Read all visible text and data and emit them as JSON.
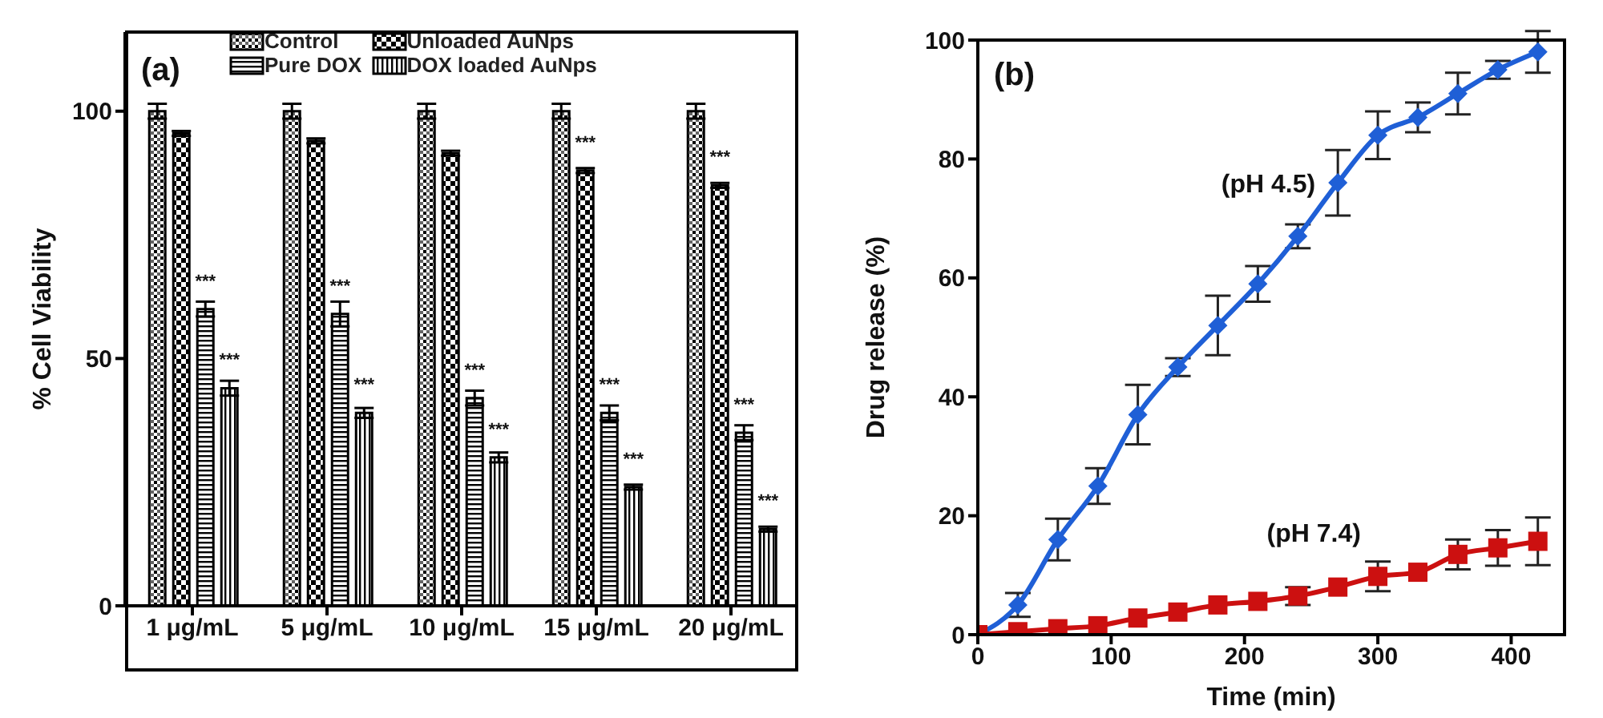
{
  "chart_data": [
    {
      "type": "bar",
      "ylabel": "% Cell Viability",
      "categories": [
        "1 μg/mL",
        "5 μg/mL",
        "10 μg/mL",
        "15 μg/mL",
        "20 μg/mL"
      ],
      "ylim": [
        0,
        116
      ],
      "yticks": [
        0,
        50,
        100
      ],
      "legend": "top left",
      "annotations": [
        "(a)",
        {
          "text": "***",
          "x": "1 μg/mL",
          "y": 60
        },
        {
          "text": "***",
          "x": "1 μg/mL",
          "y": 44
        },
        {
          "text": "***",
          "x": "5 μg/mL",
          "y": 59
        },
        {
          "text": "***",
          "x": "5 μg/mL",
          "y": 39
        },
        {
          "text": "***",
          "x": "10 μg/mL",
          "y": 42
        },
        {
          "text": "***",
          "x": "10 μg/mL",
          "y": 30
        },
        {
          "text": "***",
          "x": "15 μg/mL",
          "y": 88
        },
        {
          "text": "***",
          "x": "15 μg/mL",
          "y": 39
        },
        {
          "text": "***",
          "x": "15 μg/mL",
          "y": 24
        },
        {
          "text": "***",
          "x": "20 μg/mL",
          "y": 85
        },
        {
          "text": "***",
          "x": "20 μg/mL",
          "y": 35
        },
        {
          "text": "***",
          "x": "20 μg/mL",
          "y": 15.5
        }
      ],
      "series": [
        {
          "name": "Control",
          "color": "#000000",
          "values": [
            100,
            100,
            100,
            100,
            100
          ],
          "errors": [
            1.5,
            1.5,
            1.5,
            1.5,
            1.5
          ]
        },
        {
          "name": "Unloaded AuNps",
          "color": "#000000",
          "values": [
            95.5,
            94,
            91.5,
            88,
            85
          ],
          "errors": [
            0.5,
            0.5,
            0.5,
            0.5,
            0.5
          ]
        },
        {
          "name": "Pure DOX",
          "color": "#000000",
          "values": [
            60,
            59,
            42,
            39,
            35
          ],
          "errors": [
            1.5,
            2.5,
            1.5,
            1.5,
            1.5
          ]
        },
        {
          "name": "DOX loaded AuNps",
          "color": "#000000",
          "values": [
            44,
            39,
            30,
            24,
            15.5
          ],
          "errors": [
            1.5,
            1,
            1,
            0.5,
            0.5
          ]
        }
      ]
    },
    {
      "type": "line",
      "xlabel": "Time (min)",
      "ylabel": "Drug release (%)",
      "xlim": [
        0,
        440
      ],
      "xticks": [
        0,
        100,
        200,
        300,
        400
      ],
      "ylim": [
        0,
        100
      ],
      "yticks": [
        0,
        20,
        40,
        60,
        80,
        100
      ],
      "annotations": [
        "(b)"
      ],
      "x": [
        0,
        30,
        60,
        90,
        120,
        150,
        180,
        210,
        240,
        270,
        300,
        330,
        360,
        390,
        420
      ],
      "series": [
        {
          "name": "(pH 4.5)",
          "color": "#1f5fd6",
          "marker": "diamond",
          "values": [
            0,
            5,
            16,
            25,
            37,
            45,
            52,
            59,
            67,
            76,
            84,
            87,
            91,
            95,
            98
          ],
          "errors": [
            null,
            2,
            3.5,
            3,
            5,
            1.5,
            5,
            3,
            2,
            5.5,
            4,
            2.5,
            3.5,
            1.5,
            3.5
          ]
        },
        {
          "name": "(pH 7.4)",
          "color": "#cc1010",
          "marker": "square",
          "values": [
            0,
            0.5,
            1,
            1.5,
            2.8,
            3.8,
            5,
            5.6,
            6.5,
            8,
            9.8,
            10.5,
            13.5,
            14.6,
            15.7
          ],
          "errors": [
            null,
            null,
            null,
            null,
            null,
            null,
            null,
            null,
            1.5,
            null,
            2.5,
            null,
            2.5,
            3,
            4
          ]
        }
      ]
    }
  ]
}
